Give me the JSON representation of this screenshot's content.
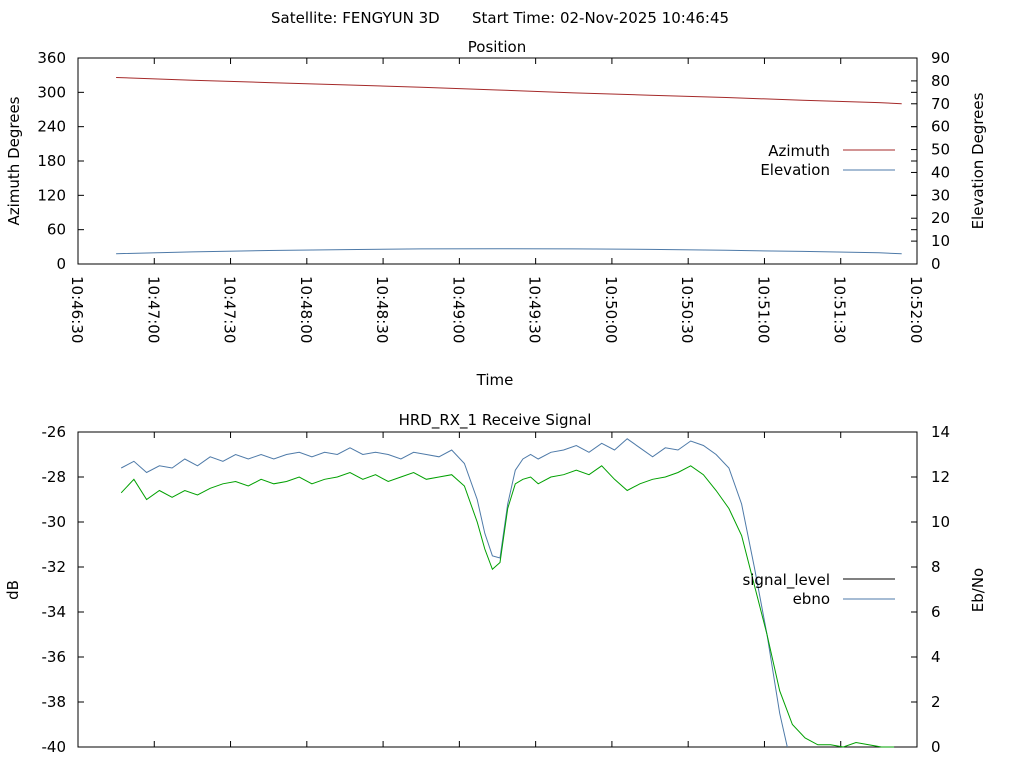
{
  "header": {
    "satellite": "Satellite: FENGYUN 3D",
    "start_time": "Start Time: 02-Nov-2025 10:46:45"
  },
  "chart_data": [
    {
      "type": "line",
      "title": "Position",
      "xlabel": "Time",
      "ylabel": "Azimuth Degrees",
      "y2label": "Elevation Degrees",
      "x_ticks": [
        "10:46:30",
        "10:47:00",
        "10:47:30",
        "10:48:00",
        "10:48:30",
        "10:49:00",
        "10:49:30",
        "10:50:00",
        "10:50:30",
        "10:51:00",
        "10:51:30",
        "10:52:00"
      ],
      "xlim": [
        "10:46:30",
        "10:52:00"
      ],
      "ylim": [
        0,
        360
      ],
      "y_ticks": [
        0,
        60,
        120,
        180,
        240,
        300,
        360
      ],
      "y2lim": [
        0,
        90
      ],
      "y2_ticks": [
        0,
        10,
        20,
        30,
        40,
        50,
        60,
        70,
        80,
        90
      ],
      "legend_position": "right",
      "series": [
        {
          "name": "Azimuth",
          "axis": "y",
          "color": "#a52a2a",
          "x": [
            "10:46:45",
            "10:47:15",
            "10:47:45",
            "10:48:15",
            "10:48:45",
            "10:49:15",
            "10:49:45",
            "10:50:15",
            "10:50:45",
            "10:51:15",
            "10:51:45"
          ],
          "values": [
            326,
            321,
            317,
            313,
            309,
            304,
            299,
            295,
            291,
            286,
            282
          ],
          "end": {
            "x": "10:51:54",
            "value": 280
          }
        },
        {
          "name": "Elevation",
          "axis": "y2",
          "color": "#4e7aa8",
          "x": [
            "10:46:45",
            "10:47:15",
            "10:47:45",
            "10:48:15",
            "10:48:45",
            "10:49:15",
            "10:49:45",
            "10:50:15",
            "10:50:45",
            "10:51:15",
            "10:51:45"
          ],
          "values": [
            4.5,
            5.3,
            5.9,
            6.3,
            6.6,
            6.7,
            6.6,
            6.4,
            6.0,
            5.5,
            4.9
          ],
          "end": {
            "x": "10:51:54",
            "value": 4.5
          }
        }
      ]
    },
    {
      "type": "line",
      "title": "HRD_RX_1 Receive Signal",
      "xlabel": "",
      "ylabel": "dB",
      "y2label": "Eb/No",
      "ylim": [
        -40,
        -26
      ],
      "y_ticks": [
        -40,
        -38,
        -36,
        -34,
        -32,
        -30,
        -28,
        -26
      ],
      "y2lim": [
        0,
        14
      ],
      "y2_ticks": [
        0,
        2,
        4,
        6,
        8,
        10,
        12,
        14
      ],
      "xlim": [
        "10:46:30",
        "10:52:00"
      ],
      "legend_position": "right",
      "series": [
        {
          "name": "signal_level",
          "axis": "y",
          "color": "#000000",
          "x": [],
          "values": []
        },
        {
          "name": "ebno",
          "axis": "y2",
          "color": "#4e7aa8",
          "x": [
            "10:46:47",
            "10:46:52",
            "10:46:57",
            "10:47:02",
            "10:47:07",
            "10:47:12",
            "10:47:17",
            "10:47:22",
            "10:47:27",
            "10:47:32",
            "10:47:37",
            "10:47:42",
            "10:47:47",
            "10:47:52",
            "10:47:57",
            "10:48:02",
            "10:48:07",
            "10:48:12",
            "10:48:17",
            "10:48:22",
            "10:48:27",
            "10:48:32",
            "10:48:37",
            "10:48:42",
            "10:48:47",
            "10:48:52",
            "10:48:57",
            "10:49:02",
            "10:49:07",
            "10:49:10",
            "10:49:13",
            "10:49:16",
            "10:49:19",
            "10:49:22",
            "10:49:25",
            "10:49:28",
            "10:49:31",
            "10:49:36",
            "10:49:41",
            "10:49:46",
            "10:49:51",
            "10:49:56",
            "10:50:01",
            "10:50:06",
            "10:50:11",
            "10:50:16",
            "10:50:21",
            "10:50:26",
            "10:50:31",
            "10:50:36",
            "10:50:41",
            "10:50:46",
            "10:50:51",
            "10:50:56",
            "10:51:01",
            "10:51:06",
            "10:51:09"
          ],
          "values": [
            12.4,
            12.7,
            12.2,
            12.5,
            12.4,
            12.8,
            12.5,
            12.9,
            12.7,
            13.0,
            12.8,
            13.0,
            12.8,
            13.0,
            13.1,
            12.9,
            13.1,
            13.0,
            13.3,
            13.0,
            13.1,
            13.0,
            12.8,
            13.1,
            13.0,
            12.9,
            13.2,
            12.6,
            11.0,
            9.5,
            8.5,
            8.4,
            10.8,
            12.3,
            12.8,
            13.0,
            12.8,
            13.1,
            13.2,
            13.4,
            13.1,
            13.5,
            13.2,
            13.7,
            13.3,
            12.9,
            13.3,
            13.2,
            13.6,
            13.4,
            13.0,
            12.4,
            10.8,
            8.0,
            5.0,
            1.5,
            0.0
          ]
        },
        {
          "name": "",
          "axis": "y",
          "color": "#00a000",
          "x": [
            "10:46:47",
            "10:46:52",
            "10:46:57",
            "10:47:02",
            "10:47:07",
            "10:47:12",
            "10:47:17",
            "10:47:22",
            "10:47:27",
            "10:47:32",
            "10:47:37",
            "10:47:42",
            "10:47:47",
            "10:47:52",
            "10:47:57",
            "10:48:02",
            "10:48:07",
            "10:48:12",
            "10:48:17",
            "10:48:22",
            "10:48:27",
            "10:48:32",
            "10:48:37",
            "10:48:42",
            "10:48:47",
            "10:48:52",
            "10:48:57",
            "10:49:02",
            "10:49:07",
            "10:49:10",
            "10:49:13",
            "10:49:16",
            "10:49:19",
            "10:49:22",
            "10:49:25",
            "10:49:28",
            "10:49:31",
            "10:49:36",
            "10:49:41",
            "10:49:46",
            "10:49:51",
            "10:49:56",
            "10:50:01",
            "10:50:06",
            "10:50:11",
            "10:50:16",
            "10:50:21",
            "10:50:26",
            "10:50:31",
            "10:50:36",
            "10:50:41",
            "10:50:46",
            "10:50:51",
            "10:50:56",
            "10:51:01",
            "10:51:06",
            "10:51:11",
            "10:51:16",
            "10:51:21",
            "10:51:26",
            "10:51:31",
            "10:51:36",
            "10:51:41",
            "10:51:46",
            "10:51:51"
          ],
          "values": [
            -28.7,
            -28.1,
            -29.0,
            -28.6,
            -28.9,
            -28.6,
            -28.8,
            -28.5,
            -28.3,
            -28.2,
            -28.4,
            -28.1,
            -28.3,
            -28.2,
            -28.0,
            -28.3,
            -28.1,
            -28.0,
            -27.8,
            -28.1,
            -27.9,
            -28.2,
            -28.0,
            -27.8,
            -28.1,
            -28.0,
            -27.9,
            -28.4,
            -30.0,
            -31.2,
            -32.1,
            -31.8,
            -29.4,
            -28.3,
            -28.1,
            -28.0,
            -28.3,
            -28.0,
            -27.9,
            -27.7,
            -27.9,
            -27.5,
            -28.1,
            -28.6,
            -28.3,
            -28.1,
            -28.0,
            -27.8,
            -27.5,
            -27.9,
            -28.6,
            -29.4,
            -30.6,
            -32.8,
            -35.0,
            -37.5,
            -39.0,
            -39.6,
            -39.9,
            -39.9,
            -40.0,
            -39.8,
            -39.9,
            -40.0,
            -40.0
          ]
        }
      ]
    }
  ]
}
